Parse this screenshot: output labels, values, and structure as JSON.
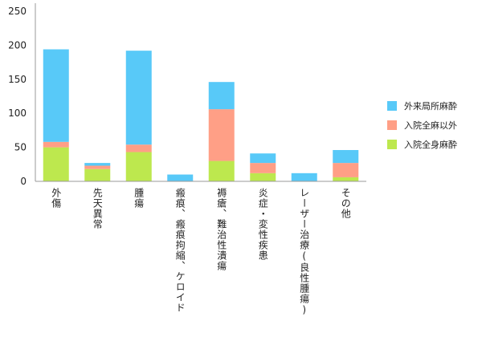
{
  "chart_data": {
    "type": "bar",
    "stacked": true,
    "categories": [
      "外傷",
      "先天異常",
      "腫瘍",
      "瘢痕、瘢痕拘縮、ケロイド",
      "褥瘡、難治性潰瘍",
      "炎症・変性疾患",
      "レーザー治療(良性腫瘍)",
      "その他"
    ],
    "series": [
      {
        "name": "入院全身麻酔",
        "color": "#bde84e",
        "values": [
          50,
          18,
          43,
          0,
          30,
          12,
          0,
          6
        ]
      },
      {
        "name": "入院全麻以外",
        "color": "#ff9f86",
        "values": [
          8,
          5,
          11,
          0,
          76,
          15,
          0,
          21
        ]
      },
      {
        "name": "外来局所麻酔",
        "color": "#58c9f8",
        "values": [
          136,
          4,
          138,
          10,
          40,
          14,
          12,
          19
        ]
      }
    ],
    "ylim": [
      0,
      250
    ],
    "yticks": [
      0,
      50,
      100,
      150,
      200,
      250
    ],
    "grid": false,
    "legend_position": "right",
    "title": "",
    "xlabel": "",
    "ylabel": ""
  }
}
